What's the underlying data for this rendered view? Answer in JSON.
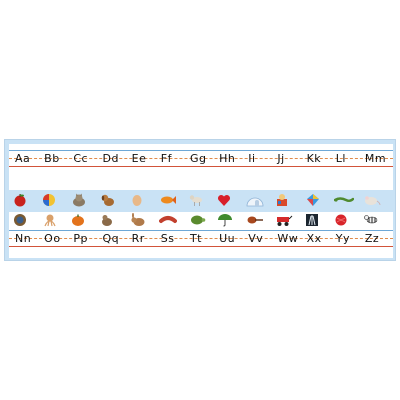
{
  "strip_top": {
    "letters": [
      "Aa",
      "Bb",
      "Cc",
      "Dd",
      "Ee",
      "Ff",
      "Gg",
      "Hh",
      "Ii",
      "Jj",
      "Kk",
      "Ll",
      "Mm"
    ],
    "pictures": [
      "apple-icon",
      "ball-icon",
      "cat-icon",
      "dog-icon",
      "egg-icon",
      "fish-icon",
      "goat-icon",
      "heart-icon",
      "igloo-icon",
      "jack-in-the-box-icon",
      "kite-icon",
      "lizard-icon",
      "mouse-icon"
    ]
  },
  "strip_bottom": {
    "letters": [
      "Nn",
      "Oo",
      "Pp",
      "Qq",
      "Rr",
      "Ss",
      "Tt",
      "Uu",
      "Vv",
      "Ww",
      "Xx",
      "Yy",
      "Zz"
    ],
    "pictures": [
      "nest-icon",
      "octopus-icon",
      "pumpkin-icon",
      "quail-icon",
      "rabbit-icon",
      "sausage-icon",
      "turtle-icon",
      "umbrella-icon",
      "violin-icon",
      "wagon-icon",
      "x-ray-icon",
      "yarn-icon",
      "zebra-icon"
    ]
  },
  "colors": {
    "background": "#c9e2f5",
    "guide_line_blue": "#6fa8d6",
    "guide_line_orange": "#e08a4a",
    "guide_line_red": "#d2543a"
  }
}
